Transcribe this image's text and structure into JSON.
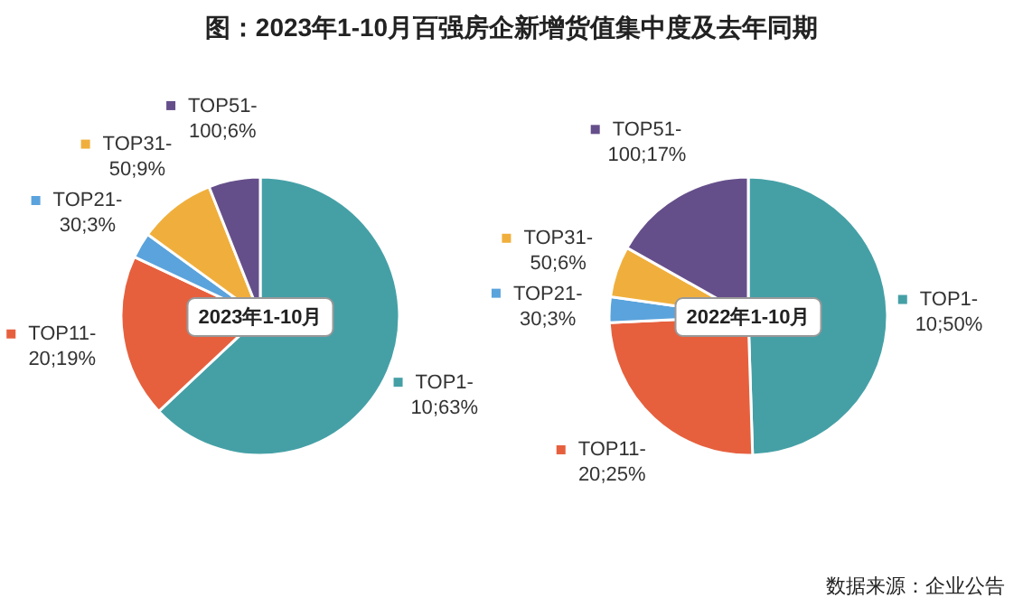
{
  "chart_data": [
    {
      "type": "pie",
      "title": "图：2023年1-10月百强房企新增货值集中度及去年同期",
      "subtitle": "2023年1-10月",
      "categories": [
        "TOP1-10",
        "TOP11-20",
        "TOP21-30",
        "TOP31-50",
        "TOP51-100"
      ],
      "values": [
        63,
        19,
        3,
        9,
        6
      ],
      "value_labels": [
        ";63%",
        ";19%",
        ";3%",
        ";9%",
        ";6%"
      ],
      "colors": [
        "#45a0a6",
        "#e6603e",
        "#5ba3dc",
        "#f0af3c",
        "#654f8a"
      ],
      "legend": "left"
    },
    {
      "type": "pie",
      "subtitle": "2022年1-10月",
      "categories": [
        "TOP1-10",
        "TOP11-20",
        "TOP21-30",
        "TOP31-50",
        "TOP51-100"
      ],
      "values": [
        50,
        25,
        3,
        6,
        17
      ],
      "value_labels": [
        ";50%",
        ";25%",
        ";3%",
        ";6%",
        ";17%"
      ],
      "colors": [
        "#45a0a6",
        "#e6603e",
        "#5ba3dc",
        "#f0af3c",
        "#654f8a"
      ],
      "legend": "left",
      "annotations": [
        "数据来源：企业公告"
      ]
    }
  ]
}
